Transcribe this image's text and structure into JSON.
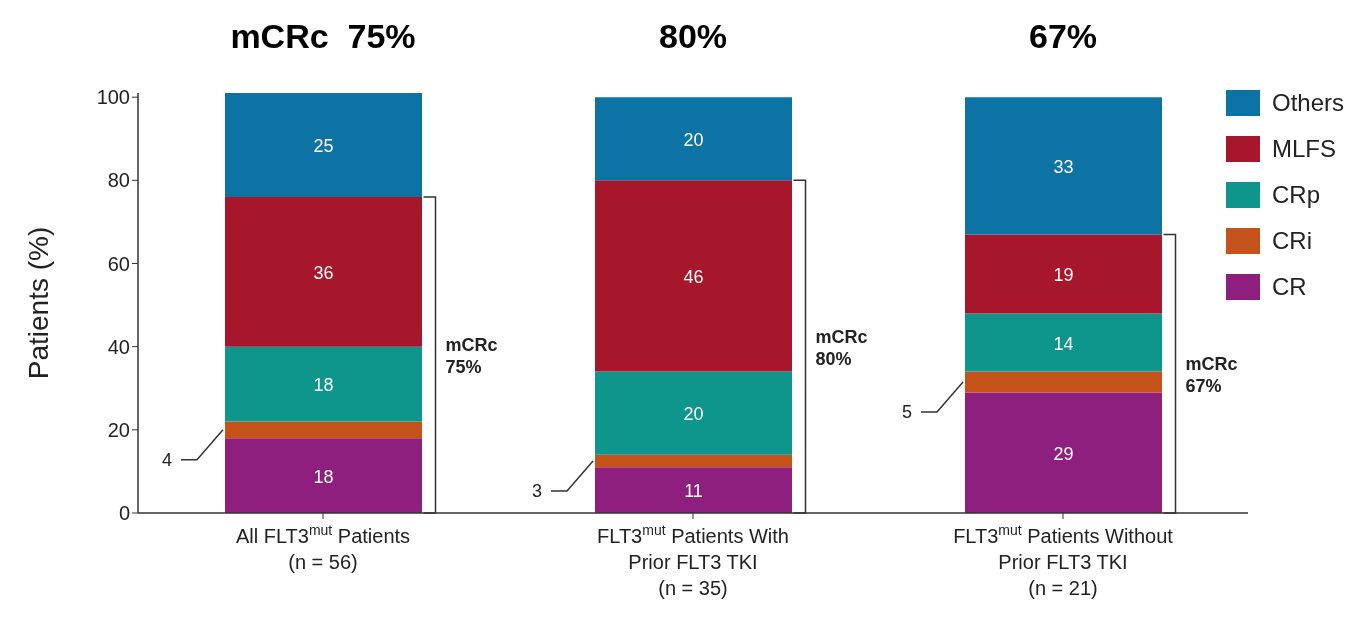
{
  "chart_data": {
    "type": "bar",
    "stacked": true,
    "ylabel": "Patients (%)",
    "categories": [
      "All FLT3$^{mut}$ Patients\n(n = 56)",
      "FLT3$^{mut}$ Patients With\nPrior FLT3 TKI\n(n = 35)",
      "FLT3$^{mut}$ Patients Without\nPrior FLT3 TKI\n(n = 21)"
    ],
    "series": [
      {
        "name": "CR",
        "color": "#8e1f7e",
        "values": [
          18,
          11,
          29
        ]
      },
      {
        "name": "CRi",
        "color": "#c5511b",
        "values": [
          4,
          3,
          5
        ]
      },
      {
        "name": "CRp",
        "color": "#0e958c",
        "values": [
          18,
          20,
          14
        ]
      },
      {
        "name": "MLFS",
        "color": "#a6172c",
        "values": [
          36,
          46,
          19
        ]
      },
      {
        "name": "Others",
        "color": "#0d72a4",
        "values": [
          25,
          20,
          33
        ]
      }
    ],
    "ylim": [
      0,
      101
    ],
    "yticks": [
      0,
      20,
      40,
      60,
      80,
      100
    ],
    "grid": false,
    "legend": "top right",
    "data_labels": true,
    "annotations": [
      "mCRc  75%",
      "80%",
      "67%",
      "mCRc\n75%",
      "mCRc\n80%",
      "mCRc\n67%"
    ]
  }
}
